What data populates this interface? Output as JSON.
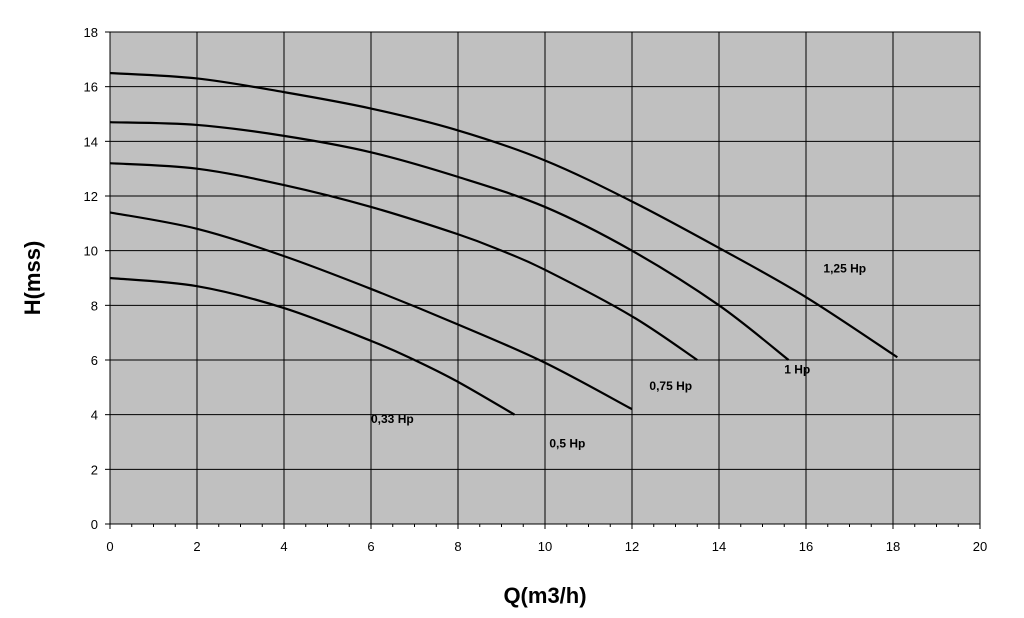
{
  "chart_data": {
    "type": "line",
    "xlabel": "Q(m3/h)",
    "ylabel": "H(mss)",
    "xlim": [
      0,
      20
    ],
    "ylim": [
      0,
      18
    ],
    "x_ticks": [
      "0",
      "2",
      "4",
      "6",
      "8",
      "10",
      "12",
      "14",
      "16",
      "18",
      "20"
    ],
    "y_ticks": [
      "0",
      "2",
      "4",
      "6",
      "8",
      "10",
      "12",
      "14",
      "16",
      "18"
    ],
    "grid": true,
    "legend": "none",
    "plot_background": "#c0c0c0",
    "line_color": "#000000",
    "series": [
      {
        "name": "0,33 Hp",
        "x": [
          0,
          2,
          4,
          6,
          7,
          8,
          9.3
        ],
        "y": [
          9.0,
          8.7,
          7.9,
          6.7,
          6.0,
          5.2,
          4.0
        ]
      },
      {
        "name": "0,5 Hp",
        "x": [
          0,
          2,
          4,
          6,
          8,
          10,
          12
        ],
        "y": [
          11.4,
          10.8,
          9.8,
          8.6,
          7.3,
          5.9,
          4.2
        ]
      },
      {
        "name": "0,75 Hp",
        "x": [
          0,
          2,
          4,
          6,
          8,
          9,
          10,
          12,
          13.5
        ],
        "y": [
          13.2,
          13.0,
          12.4,
          11.6,
          10.6,
          10.0,
          9.3,
          7.6,
          6.0
        ]
      },
      {
        "name": "1 Hp",
        "x": [
          0,
          2,
          4,
          6,
          8,
          10,
          12,
          14,
          15.6
        ],
        "y": [
          14.7,
          14.6,
          14.2,
          13.6,
          12.7,
          11.6,
          10.0,
          8.0,
          6.0
        ]
      },
      {
        "name": "1,25 Hp",
        "x": [
          0,
          2,
          4,
          6,
          8,
          10,
          12,
          14,
          16,
          18.1
        ],
        "y": [
          16.5,
          16.3,
          15.8,
          15.2,
          14.4,
          13.3,
          11.8,
          10.1,
          8.3,
          6.1
        ]
      }
    ]
  }
}
